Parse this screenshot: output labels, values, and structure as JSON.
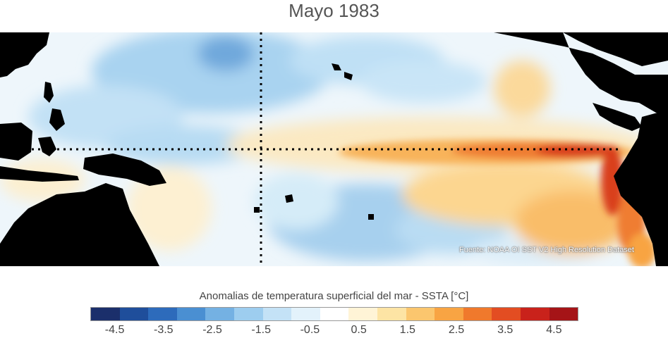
{
  "title": "Mayo 1983",
  "source": "Fuente: NOAA OI SST V2 High Resolution Dataset",
  "colorbar": {
    "title": "Anomalias de temperatura superficial del mar - SSTA  [°C]",
    "ticks": [
      "-4.5",
      "-3.5",
      "-2.5",
      "-1.5",
      "-0.5",
      "0.5",
      "1.5",
      "2.5",
      "3.5",
      "4.5"
    ],
    "range": [
      -5,
      5
    ],
    "colors": [
      "#1b2f6b",
      "#1f4e9b",
      "#2d6bbb",
      "#4a8fd2",
      "#74b1e3",
      "#9dcdef",
      "#c4e2f6",
      "#e3f2fb",
      "#ffffff",
      "#fff4d6",
      "#fde4a4",
      "#fbc66e",
      "#f8a443",
      "#f0792c",
      "#e34d22",
      "#c9221b",
      "#a51417"
    ]
  },
  "map": {
    "type": "heatmap",
    "variable": "SSTA",
    "units": "°C",
    "region": "Pacífico tropical",
    "reference_lines": [
      "equator",
      "dateline"
    ]
  }
}
